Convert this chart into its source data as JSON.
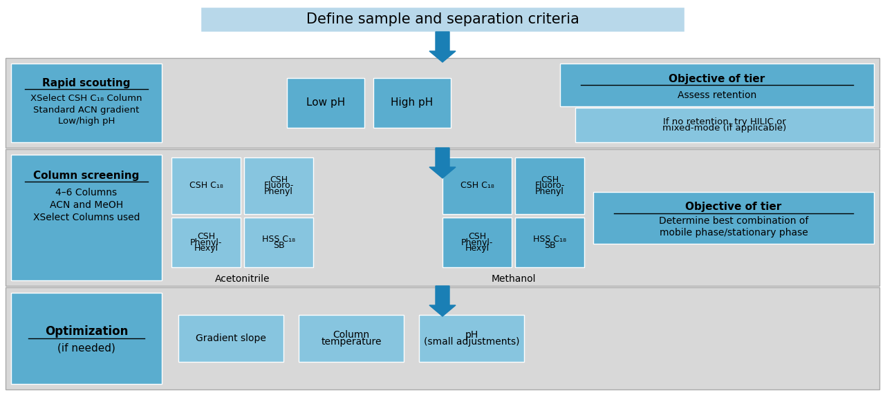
{
  "title": "Define sample and separation criteria",
  "title_bg": "#b8d8ea",
  "section_bg": "#d8d8d8",
  "box_dark": "#5aadcf",
  "box_light": "#87c5df",
  "box_lighter": "#a8d4e8",
  "arrow_color": "#1a7fb5",
  "tier1": {
    "left_title": "Rapid scouting",
    "left_lines": [
      "XSelect CSH C₁₈ Column",
      "Standard ACN gradient",
      "Low/high pH"
    ],
    "center_boxes": [
      "Low pH",
      "High pH"
    ],
    "right_title": "Objective of tier",
    "right_body": "Assess retention",
    "right_note": "If no retention, try HILIC or\nmixed-mode (if applicable)"
  },
  "tier2": {
    "left_title": "Column screening",
    "left_lines": [
      "4–6 Columns",
      "ACN and MeOH",
      "XSelect Columns used"
    ],
    "acn_top": [
      "CSH C₁₈",
      "CSH\nFluoro-\nPhenyl"
    ],
    "acn_bot": [
      "CSH\nPhenyl-\nHexyl",
      "HSS C₁₈\nSB"
    ],
    "meoh_top": [
      "CSH C₁₈",
      "CSH\nFluoro-\nPhenyl"
    ],
    "meoh_bot": [
      "CSH\nPhenyl-\nHexyl",
      "HSS C₁₈\nSB"
    ],
    "acn_label": "Acetonitrile",
    "meoh_label": "Methanol",
    "right_title": "Objective of tier",
    "right_body": "Determine best combination of\nmobile phase/stationary phase"
  },
  "tier3": {
    "left_title": "Optimization",
    "left_subtitle": "(if needed)",
    "center_boxes": [
      "Gradient slope",
      "Column\ntemperature",
      "pH\n(small adjustments)"
    ]
  }
}
